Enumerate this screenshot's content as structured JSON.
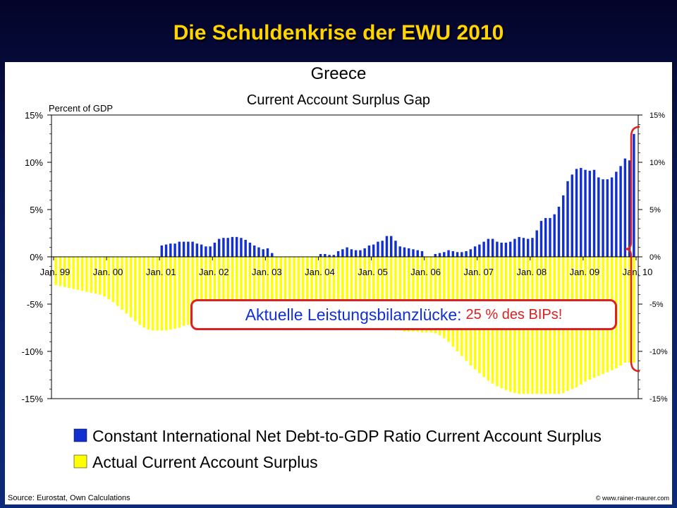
{
  "slide": {
    "title": "Die Schuldenkrise  der EWU 2010",
    "source": "Source:  Eurostat, Own Calculations",
    "copyright": "© www.rainer-maurer.com"
  },
  "callout": {
    "main": "Aktuelle Leistungsbilanzlücke:",
    "accent": "25 % des BIPs!"
  },
  "legend": [
    {
      "label": "Constant International Net Debt-to-GDP Ratio Current Account Surplus",
      "color": "#1230d0"
    },
    {
      "label": "Actual Current Account Surplus",
      "color": "#ffff00"
    }
  ],
  "chart_data": {
    "type": "bar",
    "title": "Greece",
    "subtitle": "Current Account Surplus Gap",
    "ylabel": "Percent of GDP",
    "ylim": [
      -15,
      15
    ],
    "yticks": [
      "15%",
      "10%",
      "5%",
      "0%",
      "-5%",
      "-10%",
      "-15%"
    ],
    "ytick_values": [
      15,
      10,
      5,
      0,
      -5,
      -10,
      -15
    ],
    "xtick_labels": [
      "Jan. 99",
      "Jan. 00",
      "Jan. 01",
      "Jan. 02",
      "Jan. 03",
      "Jan. 04",
      "Jan. 05",
      "Jan. 06",
      "Jan. 07",
      "Jan. 08",
      "Jan. 09",
      "Jan. 10"
    ],
    "x_start": "Jan. 99",
    "frequency": "monthly",
    "series": [
      {
        "name": "Constant International Net Debt-to-GDP Ratio Current Account Surplus",
        "color": "#1230d0",
        "values": [
          0,
          0,
          0,
          0,
          0,
          0,
          0,
          0,
          0,
          0,
          0,
          0,
          0,
          0,
          0,
          0,
          0,
          0,
          0,
          0,
          0,
          0,
          0,
          0,
          1.2,
          1.3,
          1.4,
          1.4,
          1.6,
          1.6,
          1.6,
          1.6,
          1.4,
          1.3,
          1.1,
          1.1,
          1.5,
          1.9,
          2.0,
          2.0,
          2.1,
          2.1,
          2.0,
          1.8,
          1.5,
          1.2,
          1.0,
          0.8,
          0.9,
          0.4,
          0,
          0,
          0,
          0,
          0,
          0,
          0,
          0,
          0,
          0,
          0.3,
          0.3,
          0.2,
          0.2,
          0.6,
          0.8,
          1.0,
          0.8,
          0.7,
          0.7,
          0.9,
          1.2,
          1.3,
          1.6,
          1.7,
          2.2,
          2.2,
          1.7,
          1.1,
          1.0,
          0.9,
          0.8,
          0.7,
          0.6,
          0,
          0,
          0.3,
          0.4,
          0.5,
          0.7,
          0.6,
          0.5,
          0.5,
          0.6,
          0.8,
          1.1,
          1.3,
          1.6,
          1.9,
          1.9,
          1.6,
          1.5,
          1.5,
          1.6,
          1.9,
          2.1,
          2.0,
          1.9,
          2.0,
          2.8,
          3.8,
          4.1,
          4.1,
          4.5,
          5.3,
          6.5,
          8.0,
          8.7,
          9.3,
          9.4,
          9.2,
          9.1,
          9.2,
          8.4,
          8.2,
          8.2,
          8.4,
          9.0,
          9.6,
          10.4,
          10.2,
          13.0
        ],
        "note_values_monthly": true
      },
      {
        "name": "Actual Current Account Surplus",
        "color": "#ffff00",
        "values": [
          -3.0,
          -3.1,
          -3.2,
          -3.3,
          -3.4,
          -3.5,
          -3.6,
          -3.7,
          -3.8,
          -3.9,
          -4.0,
          -4.2,
          -4.5,
          -4.8,
          -5.2,
          -5.6,
          -6.0,
          -6.4,
          -6.8,
          -7.2,
          -7.5,
          -7.7,
          -7.8,
          -7.8,
          -7.8,
          -7.8,
          -7.7,
          -7.6,
          -7.5,
          -7.3,
          -7.2,
          -7.1,
          -7.0,
          -6.9,
          -6.8,
          -6.8,
          -6.7,
          -6.7,
          -6.6,
          -6.6,
          -6.6,
          -6.6,
          -6.6,
          -6.7,
          -6.7,
          -6.8,
          -6.8,
          -6.9,
          -6.9,
          -7.0,
          -7.0,
          -7.0,
          -7.0,
          -7.0,
          -6.9,
          -6.9,
          -6.9,
          -6.9,
          -6.8,
          -6.8,
          -6.8,
          -6.8,
          -6.8,
          -6.8,
          -6.8,
          -6.8,
          -6.8,
          -6.9,
          -6.9,
          -7.0,
          -7.1,
          -7.2,
          -7.3,
          -7.4,
          -7.5,
          -7.6,
          -7.7,
          -7.8,
          -7.8,
          -7.9,
          -7.9,
          -7.9,
          -7.9,
          -8.0,
          -8.0,
          -8.0,
          -8.1,
          -8.3,
          -8.6,
          -9.0,
          -9.5,
          -10.0,
          -10.5,
          -11.0,
          -11.5,
          -11.9,
          -12.3,
          -12.7,
          -13.1,
          -13.4,
          -13.7,
          -13.9,
          -14.1,
          -14.3,
          -14.4,
          -14.5,
          -14.5,
          -14.5,
          -14.5,
          -14.5,
          -14.5,
          -14.5,
          -14.5,
          -14.5,
          -14.5,
          -14.4,
          -14.2,
          -14.0,
          -13.8,
          -13.5,
          -13.2,
          -13.0,
          -12.8,
          -12.6,
          -12.4,
          -12.2,
          -12.0,
          -11.8,
          -11.5,
          -11.2,
          -11.2,
          -11.2
        ]
      }
    ],
    "grid": false,
    "legend_position": "bottom"
  }
}
